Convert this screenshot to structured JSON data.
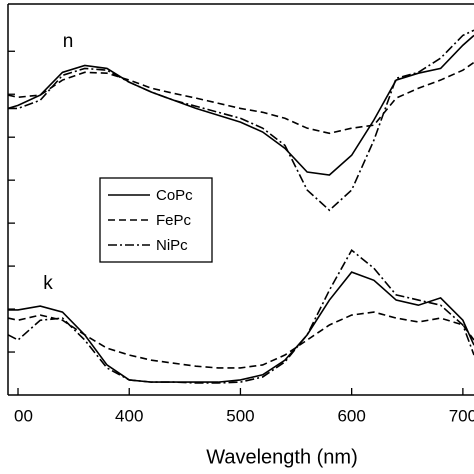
{
  "chart_data": {
    "type": "line",
    "xlabel": "Wavelength (nm)",
    "annotations": [
      {
        "text": "n"
      },
      {
        "text": "k"
      }
    ],
    "x": [
      291,
      300,
      320,
      340,
      360,
      380,
      400,
      420,
      440,
      460,
      480,
      500,
      520,
      540,
      560,
      580,
      600,
      620,
      640,
      660,
      680,
      700,
      710
    ],
    "xlim": [
      291,
      710
    ],
    "xticks": [
      {
        "value": 300,
        "label": "00"
      },
      400,
      500,
      600,
      700
    ],
    "ylim": [
      0,
      9.1
    ],
    "yticks": [
      1,
      2,
      3,
      4,
      5,
      6,
      7,
      8
    ],
    "series": [
      {
        "name": "CoPc",
        "color": "#000000",
        "dash": "solid",
        "n": [
          6.67,
          6.74,
          6.98,
          7.51,
          7.67,
          7.6,
          7.28,
          7.05,
          6.86,
          6.67,
          6.51,
          6.35,
          6.12,
          5.74,
          5.19,
          5.12,
          5.58,
          6.4,
          7.33,
          7.49,
          7.6,
          8.14,
          8.37
        ],
        "k": [
          1.98,
          1.98,
          2.07,
          1.93,
          1.4,
          0.7,
          0.35,
          0.3,
          0.3,
          0.3,
          0.3,
          0.35,
          0.47,
          0.81,
          1.4,
          2.21,
          2.86,
          2.67,
          2.21,
          2.09,
          2.26,
          1.74,
          1.16
        ]
      },
      {
        "name": "FePc",
        "color": "#000000",
        "dash": "dashed",
        "n": [
          6.98,
          6.93,
          6.98,
          7.33,
          7.51,
          7.49,
          7.33,
          7.14,
          7.02,
          6.91,
          6.79,
          6.67,
          6.58,
          6.44,
          6.21,
          6.09,
          6.21,
          6.28,
          6.91,
          7.14,
          7.33,
          7.56,
          7.74
        ],
        "k": [
          1.79,
          1.74,
          1.86,
          1.74,
          1.4,
          1.09,
          0.93,
          0.81,
          0.74,
          0.67,
          0.63,
          0.63,
          0.7,
          0.93,
          1.28,
          1.63,
          1.86,
          1.93,
          1.79,
          1.7,
          1.79,
          1.63,
          1.28
        ]
      },
      {
        "name": "NiPc",
        "color": "#000000",
        "dash": "dashdot",
        "n": [
          6.67,
          6.67,
          6.86,
          7.44,
          7.6,
          7.56,
          7.28,
          7.05,
          6.86,
          6.72,
          6.58,
          6.44,
          6.21,
          5.81,
          4.77,
          4.3,
          4.77,
          5.93,
          7.37,
          7.51,
          7.84,
          8.37,
          8.49
        ],
        "k": [
          1.4,
          1.28,
          1.74,
          1.79,
          1.28,
          0.63,
          0.35,
          0.3,
          0.3,
          0.28,
          0.28,
          0.3,
          0.42,
          0.77,
          1.4,
          2.44,
          3.37,
          2.95,
          2.33,
          2.21,
          2.09,
          1.63,
          0.93
        ]
      }
    ]
  }
}
